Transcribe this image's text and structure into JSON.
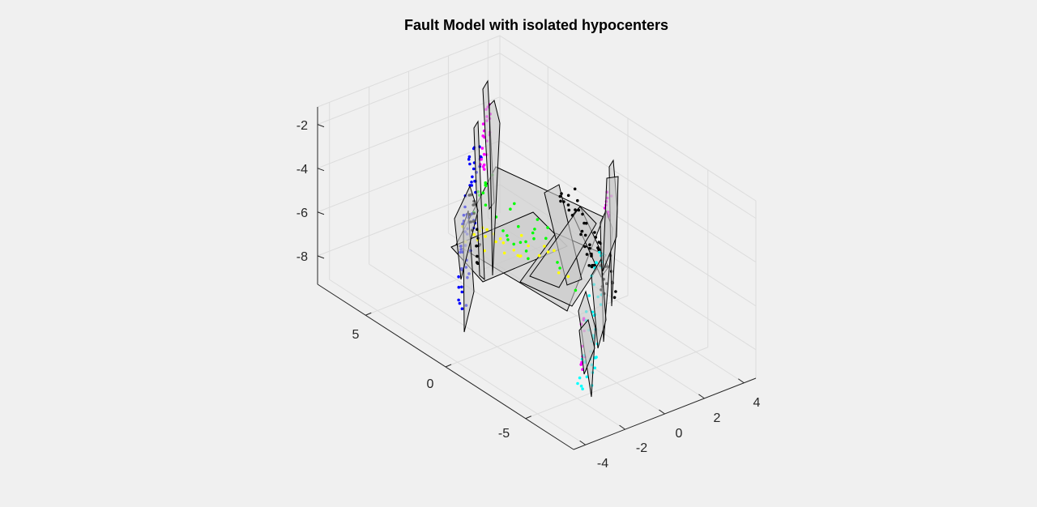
{
  "chart_data": {
    "type": "scatter3d",
    "title": "Fault Model with isolated hypocenters",
    "axes": {
      "x": {
        "ticks": [
          -4,
          -2,
          0,
          2,
          4
        ],
        "range": [
          -4.6,
          4.6
        ]
      },
      "y": {
        "ticks": [
          -5,
          0,
          5
        ],
        "range": [
          -8,
          8
        ]
      },
      "z": {
        "ticks": [
          -2,
          -4,
          -6,
          -8
        ],
        "range": [
          -9.3,
          -1.2
        ]
      }
    },
    "grid": true,
    "colors": {
      "background": "#f0f0f0",
      "grid": "#dcdcdc",
      "axis": "#262626",
      "plane_fill": "#c9c9c9",
      "plane_edge": "#000000"
    },
    "clusters": [
      {
        "color": "#0000ff"
      },
      {
        "color": "#ff00ff"
      },
      {
        "color": "#00ff00"
      },
      {
        "color": "#ffff00"
      },
      {
        "color": "#00ffff"
      },
      {
        "color": "#000000"
      }
    ]
  }
}
